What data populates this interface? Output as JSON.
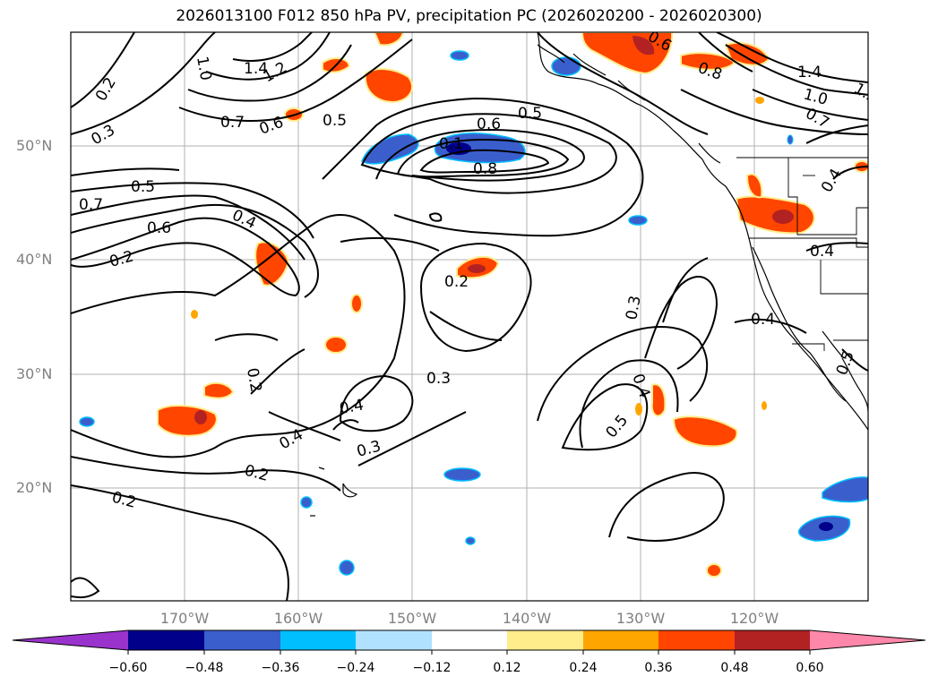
{
  "title": "2026013100 F012 850 hPa PV, precipitation PC (2026020200 - 2026020300)",
  "lat_labels": [
    "50°N",
    "40°N",
    "30°N",
    "20°N"
  ],
  "lon_labels": [
    "170°W",
    "160°W",
    "150°W",
    "140°W",
    "130°W",
    "120°W"
  ],
  "contour_labels": [
    "1.0",
    "1.4",
    "1.2",
    "0.2",
    "0.3",
    "0.7",
    "0.6",
    "0.5",
    "0.6",
    "0.5",
    "0.8",
    "0.5",
    "0.7",
    "0.4",
    "0.6",
    "0.2",
    "0.2",
    "0.3",
    "0.4",
    "0.4",
    "0.3",
    "0.2",
    "0.2",
    "0.2",
    "0.3",
    "0.4",
    "0.5",
    "0.4",
    "0.4",
    "0.5",
    "0.8",
    "1.4",
    "1.0",
    "0.7",
    "0.4",
    "1.2",
    "0.6",
    "0.1"
  ],
  "colorbar": {
    "ticks": [
      "−0.60",
      "−0.48",
      "−0.36",
      "−0.24",
      "−0.12",
      "0.12",
      "0.24",
      "0.36",
      "0.48",
      "0.60"
    ],
    "colors": [
      "#9933cc",
      "#00008b",
      "#3a5fcd",
      "#00bfff",
      "#b0e2ff",
      "#ffffff",
      "#ffec8b",
      "#ffa500",
      "#ff4500",
      "#b22222",
      "#ff88aa"
    ]
  }
}
